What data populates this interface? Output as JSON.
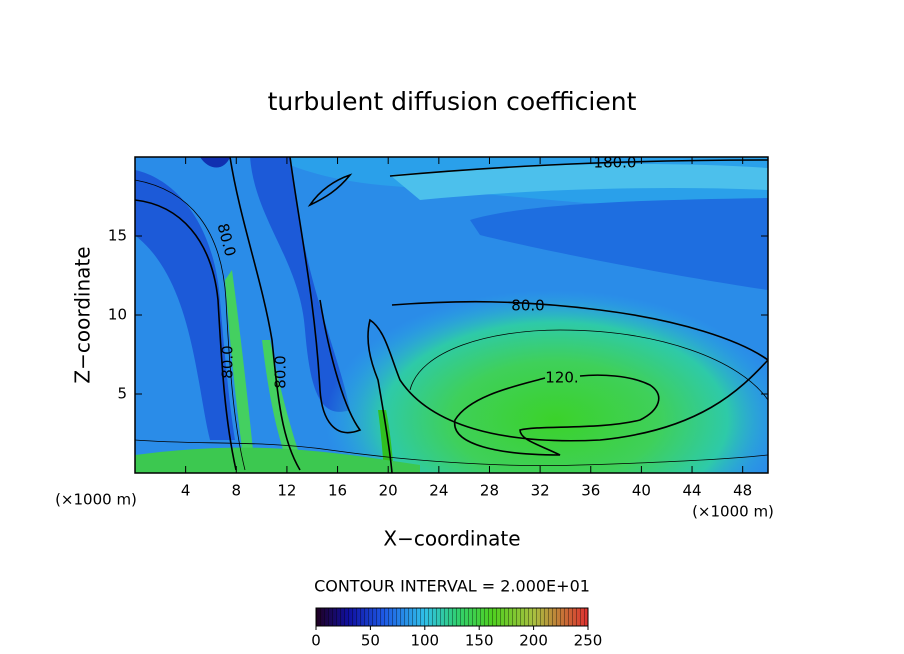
{
  "chart_data": {
    "type": "contour",
    "title": "turbulent diffusion coefficient",
    "x_label": "X−coordinate",
    "y_label": "Z−coordinate",
    "x_unit": "(×1000 m)",
    "y_unit": "(×1000 m)",
    "xlim": [
      0,
      50
    ],
    "ylim": [
      0,
      20
    ],
    "xticks": [
      4,
      8,
      12,
      16,
      20,
      24,
      28,
      32,
      36,
      40,
      44,
      48
    ],
    "yticks": [
      5,
      10,
      15
    ],
    "contour_labels": [
      {
        "value": 180,
        "label": "180.0"
      },
      {
        "value": 80,
        "label": "80.0"
      },
      {
        "value": 120,
        "label": "120."
      },
      {
        "value": 80,
        "label": "80.0"
      },
      {
        "value": 80,
        "label": "80.0"
      },
      {
        "value": 80,
        "label": "80.0"
      }
    ],
    "contour_interval": "CONTOUR INTERVAL = 2.000E+01",
    "colorbar": {
      "lim": [
        0,
        250
      ],
      "ticks": [
        0,
        50,
        100,
        150,
        200,
        250
      ]
    }
  }
}
